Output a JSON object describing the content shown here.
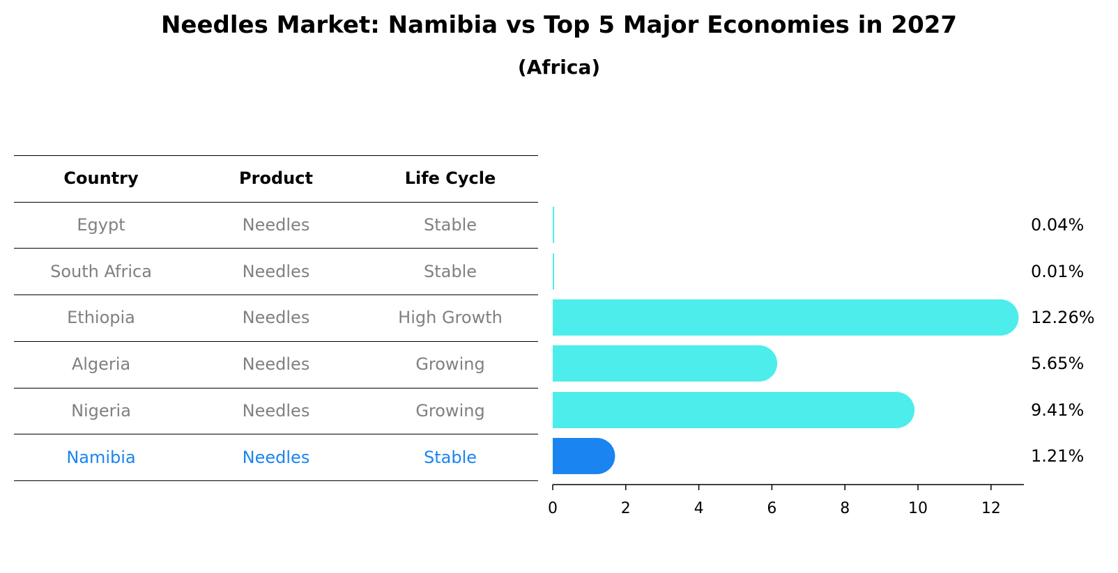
{
  "title": "Needles Market: Namibia vs Top 5 Major Economies in 2027",
  "subtitle": "(Africa)",
  "table": {
    "headers": [
      "Country",
      "Product",
      "Life Cycle"
    ],
    "rows": [
      {
        "country": "Egypt",
        "product": "Needles",
        "life_cycle": "Stable",
        "highlight": false
      },
      {
        "country": "South Africa",
        "product": "Needles",
        "life_cycle": "Stable",
        "highlight": false
      },
      {
        "country": "Ethiopia",
        "product": "Needles",
        "life_cycle": "High Growth",
        "highlight": false
      },
      {
        "country": "Algeria",
        "product": "Needles",
        "life_cycle": "Growing",
        "highlight": false
      },
      {
        "country": "Nigeria",
        "product": "Needles",
        "life_cycle": "Growing",
        "highlight": false
      },
      {
        "country": "Namibia",
        "product": "Needles",
        "life_cycle": "Stable",
        "highlight": true
      }
    ]
  },
  "colors": {
    "bar": "#4dedeb",
    "highlight_bar": "#1a84f0",
    "highlight_text": "#1a84f0",
    "muted_text": "#808080"
  },
  "chart_data": {
    "type": "bar",
    "orientation": "horizontal",
    "categories": [
      "Egypt",
      "South Africa",
      "Ethiopia",
      "Algeria",
      "Nigeria",
      "Namibia"
    ],
    "values": [
      0.04,
      0.01,
      12.26,
      5.65,
      9.41,
      1.21
    ],
    "value_labels": [
      "0.04%",
      "0.01%",
      "12.26%",
      "5.65%",
      "9.41%",
      "1.21%"
    ],
    "highlight": "Namibia",
    "xlim": [
      0,
      12.9
    ],
    "xticks": [
      0,
      2,
      4,
      6,
      8,
      10,
      12
    ],
    "grid": false
  }
}
